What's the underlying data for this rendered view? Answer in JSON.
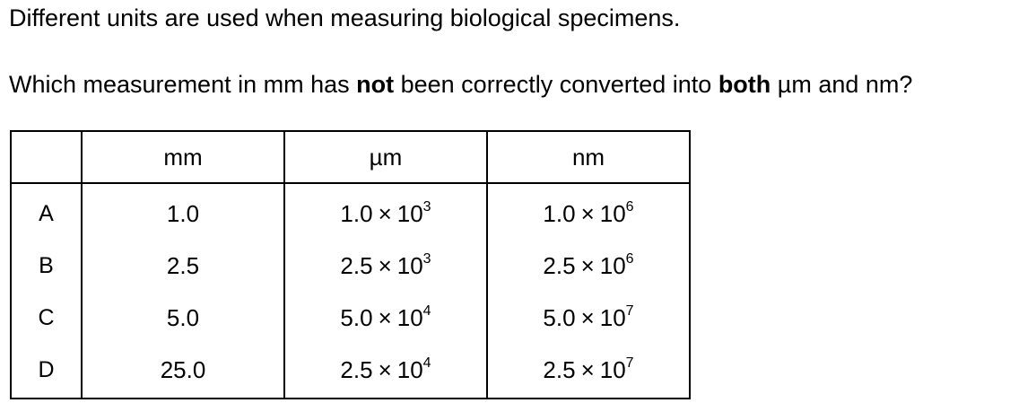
{
  "intro": "Different units are used when measuring biological specimens.",
  "question": {
    "part1": "Which measurement in mm has ",
    "bold1": "not",
    "part2": " been correctly converted into ",
    "bold2": "both",
    "part3": " µm and nm?"
  },
  "table": {
    "headers": [
      "",
      "mm",
      "µm",
      "nm"
    ],
    "rows": [
      {
        "label": "A",
        "mm": "1.0",
        "um": {
          "mantissa": "1.0",
          "exp": "3"
        },
        "nm": {
          "mantissa": "1.0",
          "exp": "6"
        }
      },
      {
        "label": "B",
        "mm": "2.5",
        "um": {
          "mantissa": "2.5",
          "exp": "3"
        },
        "nm": {
          "mantissa": "2.5",
          "exp": "6"
        }
      },
      {
        "label": "C",
        "mm": "5.0",
        "um": {
          "mantissa": "5.0",
          "exp": "4"
        },
        "nm": {
          "mantissa": "5.0",
          "exp": "7"
        }
      },
      {
        "label": "D",
        "mm": "25.0",
        "um": {
          "mantissa": "2.5",
          "exp": "4"
        },
        "nm": {
          "mantissa": "2.5",
          "exp": "7"
        }
      }
    ],
    "times_symbol": "×",
    "base": "10"
  }
}
